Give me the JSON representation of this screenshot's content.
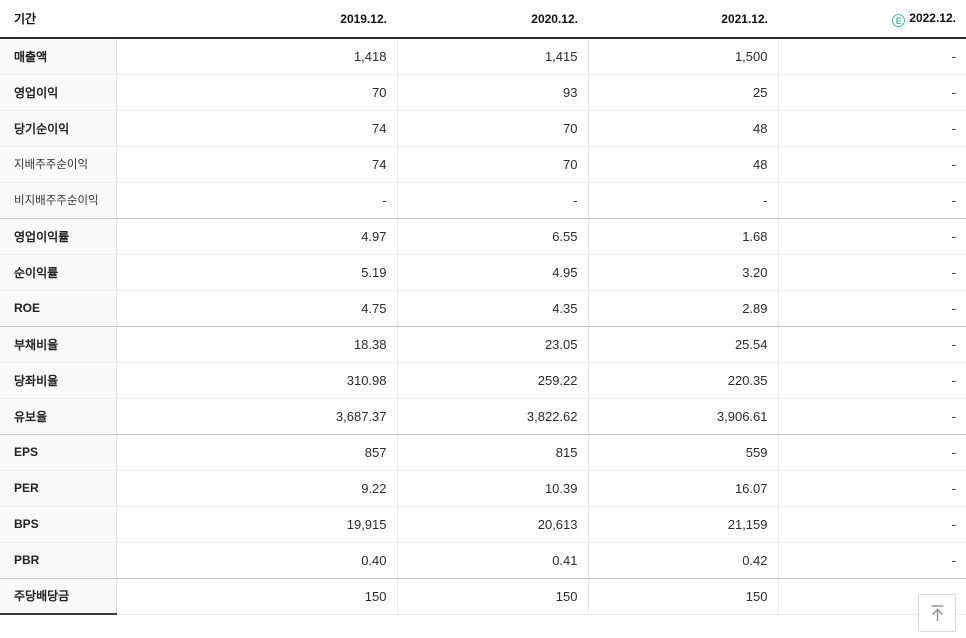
{
  "header": {
    "period_label": "기간",
    "columns": [
      {
        "label": "2019.12."
      },
      {
        "label": "2020.12."
      },
      {
        "label": "2021.12."
      },
      {
        "label": "2022.12.",
        "estimate_badge": "E"
      }
    ]
  },
  "table": {
    "rows": [
      {
        "label": "매출액",
        "sub": false,
        "group_end": false,
        "last": false,
        "values": [
          "1,418",
          "1,415",
          "1,500",
          "-"
        ]
      },
      {
        "label": "영업이익",
        "sub": false,
        "group_end": false,
        "last": false,
        "values": [
          "70",
          "93",
          "25",
          "-"
        ]
      },
      {
        "label": "당기순이익",
        "sub": false,
        "group_end": false,
        "last": false,
        "values": [
          "74",
          "70",
          "48",
          "-"
        ]
      },
      {
        "label": "지배주주순이익",
        "sub": true,
        "group_end": false,
        "last": false,
        "values": [
          "74",
          "70",
          "48",
          "-"
        ]
      },
      {
        "label": "비지배주주순이익",
        "sub": true,
        "group_end": true,
        "last": false,
        "values": [
          "-",
          "-",
          "-",
          "-"
        ]
      },
      {
        "label": "영업이익률",
        "sub": false,
        "group_end": false,
        "last": false,
        "values": [
          "4.97",
          "6.55",
          "1.68",
          "-"
        ]
      },
      {
        "label": "순이익률",
        "sub": false,
        "group_end": false,
        "last": false,
        "values": [
          "5.19",
          "4.95",
          "3.20",
          "-"
        ]
      },
      {
        "label": "ROE",
        "sub": false,
        "group_end": true,
        "last": false,
        "values": [
          "4.75",
          "4.35",
          "2.89",
          "-"
        ]
      },
      {
        "label": "부채비율",
        "sub": false,
        "group_end": false,
        "last": false,
        "values": [
          "18.38",
          "23.05",
          "25.54",
          "-"
        ]
      },
      {
        "label": "당좌비율",
        "sub": false,
        "group_end": false,
        "last": false,
        "values": [
          "310.98",
          "259.22",
          "220.35",
          "-"
        ]
      },
      {
        "label": "유보율",
        "sub": false,
        "group_end": true,
        "last": false,
        "values": [
          "3,687.37",
          "3,822.62",
          "3,906.61",
          "-"
        ]
      },
      {
        "label": "EPS",
        "sub": false,
        "group_end": false,
        "last": false,
        "values": [
          "857",
          "815",
          "559",
          "-"
        ]
      },
      {
        "label": "PER",
        "sub": false,
        "group_end": false,
        "last": false,
        "values": [
          "9.22",
          "10.39",
          "16.07",
          "-"
        ]
      },
      {
        "label": "BPS",
        "sub": false,
        "group_end": false,
        "last": false,
        "values": [
          "19,915",
          "20,613",
          "21,159",
          "-"
        ]
      },
      {
        "label": "PBR",
        "sub": false,
        "group_end": true,
        "last": false,
        "values": [
          "0.40",
          "0.41",
          "0.42",
          "-"
        ]
      },
      {
        "label": "주당배당금",
        "sub": false,
        "group_end": false,
        "last": true,
        "values": [
          "150",
          "150",
          "150",
          "-"
        ]
      }
    ]
  },
  "colors": {
    "estimate_badge": "#3fc1a0",
    "header_border": "#2b2b2b",
    "label_cell_background": "#f9f9f9"
  },
  "scroll_top_button": {
    "icon": "arrow-up-to-top"
  }
}
